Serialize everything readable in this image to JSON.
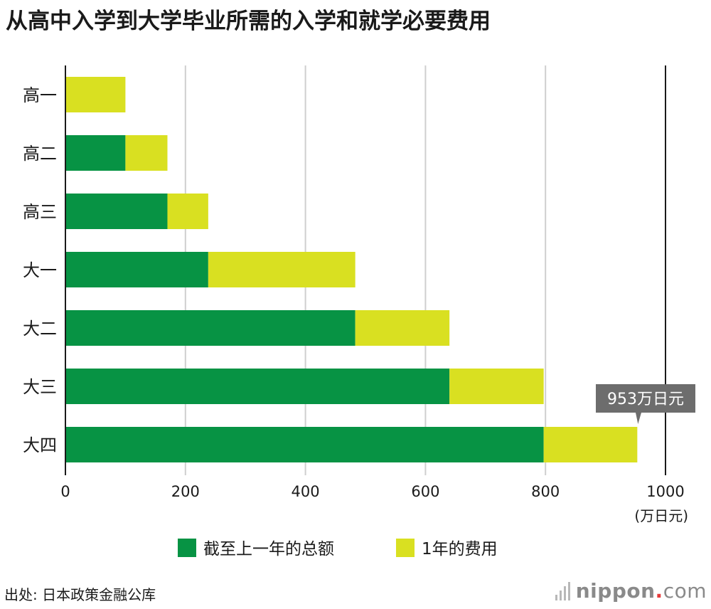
{
  "title": "从高中入学到大学毕业所需的入学和就学必要费用",
  "source": "出处: 日本政策金融公库",
  "brand": {
    "name": "nippon",
    "dot": ".",
    "tld": "com"
  },
  "colors": {
    "cumulative": "#079344",
    "annual": "#d9e021",
    "callout_bg": "#6d6d6d"
  },
  "chart_data": {
    "type": "bar",
    "orientation": "horizontal",
    "stacked": true,
    "categories": [
      "高一",
      "高二",
      "高三",
      "大一",
      "大二",
      "大三",
      "大四"
    ],
    "series": [
      {
        "name": "截至上一年的总额",
        "values": [
          0,
          100,
          170,
          238,
          483,
          640,
          797
        ]
      },
      {
        "name": "1年的费用",
        "values": [
          100,
          70,
          68,
          245,
          157,
          157,
          156
        ]
      }
    ],
    "xlim": [
      0,
      1000
    ],
    "xticks": [
      0,
      200,
      400,
      600,
      800,
      1000
    ],
    "xunit": "(万日元)",
    "grid": true,
    "legend_position": "bottom",
    "annotation": {
      "text": "953万日元",
      "category": "大四",
      "value": 953
    }
  }
}
